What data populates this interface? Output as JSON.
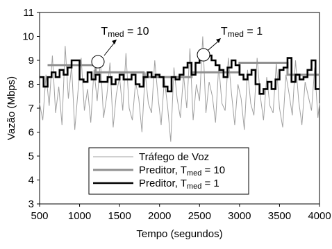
{
  "chart_data": {
    "type": "line",
    "title": "",
    "xlabel": "Tempo (segundos)",
    "ylabel": "Vazão (Mbps)",
    "xlim": [
      500,
      4000
    ],
    "ylim": [
      3,
      11
    ],
    "xticks": [
      500,
      1000,
      1500,
      2000,
      2500,
      3000,
      3500,
      4000
    ],
    "yticks": [
      3,
      4,
      5,
      6,
      7,
      8,
      9,
      10,
      11
    ],
    "grid": false,
    "legend_position": "bottom-center",
    "series": [
      {
        "name": "Tráfego de Voz",
        "color": "#a0a0a0",
        "style": "line",
        "x": [
          500,
          540,
          580,
          620,
          660,
          700,
          740,
          780,
          820,
          860,
          900,
          940,
          980,
          1020,
          1060,
          1100,
          1140,
          1180,
          1220,
          1260,
          1300,
          1340,
          1380,
          1420,
          1460,
          1500,
          1540,
          1580,
          1620,
          1660,
          1700,
          1740,
          1780,
          1820,
          1860,
          1900,
          1940,
          1980,
          2020,
          2060,
          2100,
          2140,
          2180,
          2220,
          2260,
          2300,
          2340,
          2380,
          2420,
          2460,
          2500,
          2540,
          2580,
          2620,
          2660,
          2700,
          2740,
          2780,
          2820,
          2860,
          2900,
          2940,
          2980,
          3020,
          3060,
          3100,
          3140,
          3180,
          3220,
          3260,
          3300,
          3340,
          3380,
          3420,
          3460,
          3500,
          3540,
          3580,
          3620,
          3660,
          3700,
          3740,
          3780,
          3820,
          3860,
          3900,
          3940,
          3980,
          4000
        ],
        "y": [
          7.2,
          6.5,
          8.4,
          7.1,
          9.2,
          6.8,
          7.9,
          6.3,
          9.6,
          7.4,
          8.8,
          6.1,
          7.7,
          9.1,
          6.9,
          7.8,
          6.4,
          8.6,
          7.3,
          9.0,
          6.6,
          7.5,
          8.9,
          6.2,
          7.6,
          8.3,
          6.9,
          9.3,
          7.0,
          6.5,
          8.1,
          7.4,
          6.0,
          8.5,
          7.2,
          6.8,
          9.0,
          7.5,
          6.3,
          8.2,
          7.1,
          5.6,
          8.7,
          7.4,
          6.6,
          8.4,
          7.0,
          9.5,
          6.5,
          8.0,
          7.3,
          10.0,
          6.8,
          8.1,
          7.5,
          6.4,
          8.8,
          7.2,
          6.9,
          9.1,
          7.6,
          6.3,
          8.0,
          7.4,
          6.1,
          8.6,
          7.2,
          6.7,
          9.1,
          7.5,
          6.5,
          8.3,
          7.1,
          6.8,
          8.9,
          7.0,
          6.2,
          8.4,
          7.6,
          6.7,
          9.0,
          7.3,
          6.3,
          8.1,
          7.5,
          6.9,
          8.7,
          6.6,
          7.2
        ]
      },
      {
        "name": "Preditor, T_med = 10",
        "color": "#909090",
        "style": "step",
        "x": [
          600,
          1200,
          1800,
          2400,
          3000,
          3600,
          4000
        ],
        "y": [
          8.8,
          8.5,
          8.3,
          8.5,
          8.9,
          8.4,
          8.4
        ]
      },
      {
        "name": "Preditor, T_med = 1",
        "color": "#000000",
        "style": "step",
        "x": [
          500,
          550,
          600,
          650,
          700,
          750,
          800,
          850,
          900,
          950,
          1000,
          1050,
          1100,
          1150,
          1200,
          1250,
          1300,
          1350,
          1400,
          1450,
          1500,
          1550,
          1600,
          1650,
          1700,
          1750,
          1800,
          1850,
          1900,
          1950,
          2000,
          2050,
          2100,
          2150,
          2200,
          2250,
          2300,
          2350,
          2400,
          2450,
          2500,
          2550,
          2600,
          2650,
          2700,
          2750,
          2800,
          2850,
          2900,
          2950,
          3000,
          3050,
          3100,
          3150,
          3200,
          3250,
          3300,
          3350,
          3400,
          3450,
          3500,
          3550,
          3600,
          3650,
          3700,
          3750,
          3800,
          3850,
          3900,
          3950,
          4000
        ],
        "y": [
          8.3,
          7.9,
          8.3,
          8.5,
          8.3,
          8.6,
          8.4,
          8.7,
          9.0,
          9.0,
          8.2,
          8.1,
          8.5,
          8.2,
          8.4,
          8.1,
          8.1,
          8.3,
          8.0,
          8.2,
          8.4,
          8.2,
          8.2,
          8.4,
          8.0,
          7.9,
          8.3,
          8.5,
          8.3,
          8.4,
          8.3,
          7.9,
          7.7,
          8.3,
          8.2,
          8.4,
          8.7,
          8.9,
          8.4,
          8.9,
          9.4,
          9.4,
          9.2,
          9.0,
          8.8,
          8.6,
          8.3,
          8.7,
          9.0,
          8.8,
          8.4,
          8.2,
          8.4,
          8.6,
          8.0,
          7.6,
          7.8,
          8.1,
          7.8,
          8.2,
          8.6,
          8.7,
          9.1,
          8.1,
          8.4,
          8.2,
          8.3,
          8.6,
          9.0,
          7.8,
          7.8
        ]
      }
    ],
    "legend": [
      {
        "label": "Tráfego de Voz",
        "color": "#a0a0a0",
        "sub": ""
      },
      {
        "label": "Preditor, T",
        "color": "#909090",
        "sub": "med",
        "suffix": " = 10"
      },
      {
        "label": "Preditor, T",
        "color": "#000000",
        "sub": "med",
        "suffix": " = 1"
      }
    ],
    "annotations": [
      {
        "label": "T",
        "sub": "med",
        "suffix": " = 10",
        "target_x": 1200,
        "target_y": 8.7
      },
      {
        "label": "T",
        "sub": "med",
        "suffix": " = 1",
        "target_x": 2600,
        "target_y": 9.2
      }
    ]
  }
}
